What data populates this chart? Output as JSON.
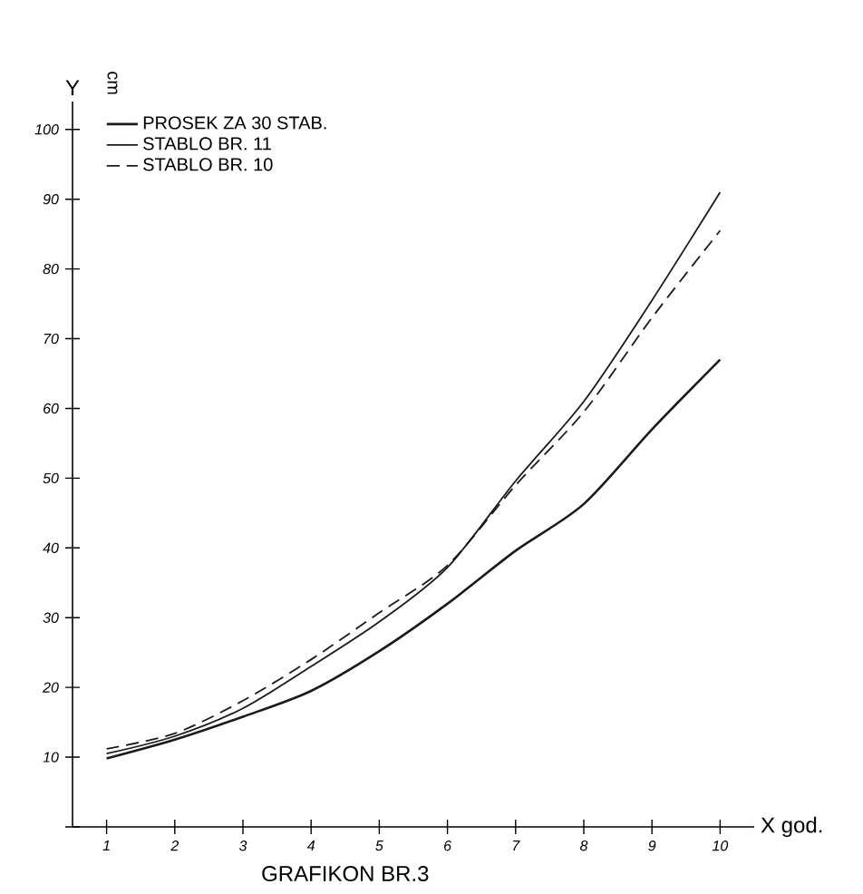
{
  "chart_data": {
    "type": "line",
    "title": "GRAFIKON BR.3",
    "xlabel": "X god.",
    "ylabel": "Y",
    "annotations": [
      "cm"
    ],
    "x": [
      1,
      2,
      3,
      4,
      5,
      6,
      7,
      8,
      9,
      10
    ],
    "series": [
      {
        "name": "PROSEK ZA 30 STAB.",
        "color": "#1a1a1a",
        "line_style": "solid",
        "values": [
          9.8,
          12.5,
          15.8,
          19.5,
          25.2,
          32,
          39.6,
          46.3,
          57,
          67
        ]
      },
      {
        "name": "STABLO BR. 11",
        "color": "#1a1a1a",
        "line_style": "solid",
        "values": [
          10.5,
          13,
          17,
          23,
          29.4,
          37.2,
          49.6,
          61,
          75.5,
          91
        ]
      },
      {
        "name": "STABLO BR. 10",
        "color": "#1a1a1a",
        "line_style": "dashed",
        "values": [
          11.2,
          13.4,
          18.1,
          24,
          30.7,
          37.5,
          49,
          59.5,
          73,
          85.5
        ]
      }
    ],
    "xlim": [
      0.5,
      10.5
    ],
    "ylim": [
      0,
      104
    ],
    "xticks": [
      1,
      2,
      3,
      4,
      5,
      6,
      7,
      8,
      9,
      10
    ],
    "yticks": [
      {
        "value": 0,
        "label": null
      },
      10,
      20,
      30,
      40,
      50,
      60,
      70,
      80,
      90,
      100
    ],
    "legend": "top left",
    "grid": false
  }
}
